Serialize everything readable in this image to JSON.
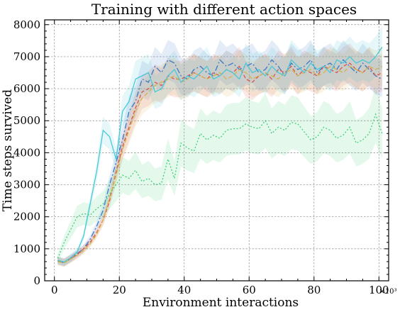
{
  "chart_data": {
    "type": "line",
    "title": "Training with different action spaces",
    "xlabel": "Environment interactions",
    "ylabel": "Time steps survived",
    "x_multiplier": "×10³",
    "xlim": [
      -3,
      103
    ],
    "ylim": [
      0,
      8150
    ],
    "xticks": [
      0,
      20,
      40,
      60,
      80,
      100
    ],
    "yticks": [
      0,
      1000,
      2000,
      3000,
      4000,
      5000,
      6000,
      7000,
      8000
    ],
    "grid": true,
    "x": [
      1,
      3,
      5,
      7,
      9,
      11,
      13,
      15,
      17,
      19,
      21,
      23,
      25,
      27,
      29,
      31,
      33,
      35,
      37,
      39,
      41,
      43,
      45,
      47,
      49,
      51,
      53,
      55,
      57,
      59,
      61,
      63,
      65,
      67,
      69,
      71,
      73,
      75,
      77,
      79,
      81,
      83,
      85,
      87,
      89,
      91,
      93,
      95,
      97,
      99,
      101
    ],
    "series": [
      {
        "color": "#3a78c9",
        "dash": "8,3,2,3",
        "band": [
          650,
          800,
          1100,
          1300,
          1600,
          2000,
          2600,
          3200,
          3700,
          4000,
          4500,
          5000,
          5400,
          5700,
          5900,
          6000,
          6100,
          6150,
          6200,
          6200,
          6250,
          6250,
          6250,
          6250,
          6300,
          6300,
          6300,
          6300,
          6300,
          6300,
          6300,
          6300,
          6300,
          6300,
          6300,
          6300,
          6300,
          6300,
          6300,
          6300,
          6300,
          6300,
          6300,
          6300,
          6300,
          6300,
          6300,
          6300,
          6300,
          6300,
          6300
        ],
        "values": [
          620,
          560,
          700,
          850,
          1000,
          1300,
          1700,
          2200,
          3000,
          3700,
          4400,
          5300,
          5600,
          6300,
          6200,
          6700,
          6500,
          6900,
          6800,
          6400,
          6300,
          6600,
          6700,
          6500,
          6400,
          6900,
          6700,
          6800,
          6600,
          6700,
          6800,
          6500,
          6600,
          6900,
          6700,
          6400,
          6800,
          6600,
          6700,
          6900,
          6500,
          6700,
          6800,
          6600,
          6900,
          6700,
          6500,
          6800,
          6600,
          6400,
          6300
        ]
      },
      {
        "color": "#d9534f",
        "dash": "5,3",
        "band": [
          650,
          800,
          1100,
          1300,
          1600,
          2000,
          2600,
          3200,
          3700,
          4000,
          4500,
          5000,
          5400,
          5700,
          5900,
          6000,
          6100,
          6150,
          6200,
          6200,
          6250,
          6250,
          6250,
          6250,
          6300,
          6300,
          6300,
          6300,
          6300,
          6300,
          6300,
          6300,
          6300,
          6300,
          6300,
          6300,
          6300,
          6300,
          6300,
          6300,
          6300,
          6300,
          6300,
          6300,
          6300,
          6300,
          6300,
          6300,
          6300,
          6300,
          6300
        ],
        "values": [
          640,
          580,
          690,
          820,
          1000,
          1200,
          1500,
          1900,
          2500,
          3400,
          4200,
          4800,
          5400,
          5900,
          6000,
          6200,
          6100,
          6400,
          6300,
          6300,
          6400,
          6500,
          6400,
          6300,
          6500,
          6400,
          6600,
          6500,
          6700,
          6300,
          6200,
          6400,
          6500,
          6300,
          6600,
          6500,
          6700,
          6400,
          6600,
          6500,
          6400,
          6700,
          6600,
          6500,
          6700,
          6800,
          6600,
          6500,
          6700,
          6400,
          6500
        ]
      },
      {
        "color": "#d1b34c",
        "dash": "6,3",
        "band": [
          650,
          800,
          1100,
          1300,
          1600,
          2000,
          2600,
          3200,
          3700,
          4000,
          4500,
          5000,
          5400,
          5700,
          5900,
          6000,
          6100,
          6150,
          6200,
          6200,
          6250,
          6250,
          6250,
          6250,
          6300,
          6300,
          6300,
          6300,
          6300,
          6300,
          6300,
          6300,
          6300,
          6300,
          6300,
          6300,
          6300,
          6300,
          6300,
          6300,
          6300,
          6300,
          6300,
          6300,
          6300,
          6300,
          6300,
          6300,
          6300,
          6300,
          6300
        ],
        "values": [
          600,
          560,
          680,
          800,
          950,
          1150,
          1450,
          1900,
          2600,
          3300,
          4100,
          4700,
          5300,
          5700,
          5900,
          6100,
          6200,
          6300,
          6400,
          6200,
          6300,
          6500,
          6400,
          6300,
          6400,
          6500,
          6300,
          6400,
          6600,
          6500,
          6300,
          6400,
          6500,
          6400,
          6300,
          6500,
          6600,
          6400,
          6500,
          6600,
          6400,
          6500,
          6700,
          6600,
          6500,
          6700,
          6600,
          6500,
          6700,
          6600,
          6700
        ]
      },
      {
        "color": "#49c8d8",
        "dash": "",
        "band": [
          650,
          800,
          1100,
          1300,
          1600,
          2000,
          2600,
          3200,
          3700,
          4000,
          4500,
          5000,
          5400,
          5700,
          5900,
          6000,
          6100,
          6150,
          6200,
          6200,
          6250,
          6250,
          6250,
          6250,
          6300,
          6300,
          6300,
          6300,
          6300,
          6300,
          6300,
          6300,
          6300,
          6300,
          6300,
          6300,
          6300,
          6300,
          6300,
          6300,
          6300,
          6300,
          6300,
          6300,
          6300,
          6300,
          6300,
          6300,
          6300,
          6300,
          6300
        ],
        "values": [
          640,
          590,
          720,
          900,
          1400,
          2400,
          3400,
          4700,
          4500,
          3800,
          5300,
          5600,
          6300,
          6400,
          6500,
          5900,
          6000,
          6400,
          6600,
          6200,
          6400,
          6300,
          6500,
          6700,
          6300,
          6400,
          6600,
          6500,
          6300,
          6800,
          6500,
          6600,
          6400,
          6700,
          6500,
          6400,
          6900,
          6700,
          6500,
          6800,
          6600,
          6700,
          6500,
          6900,
          6800,
          7000,
          6800,
          6900,
          6800,
          7000,
          7300
        ]
      },
      {
        "color": "#3fd17a",
        "dash": "2,2.5",
        "band": [
          650,
          800,
          1100,
          1300,
          1600,
          2000,
          2600,
          3200,
          3700,
          4000,
          4500,
          5000,
          5400,
          5700,
          5900,
          6000,
          6100,
          6150,
          6200,
          6200,
          6250,
          6250,
          6250,
          6250,
          6300,
          6300,
          6300,
          6300,
          6300,
          6300,
          6300,
          6300,
          6300,
          6300,
          6300,
          6300,
          6300,
          6300,
          6300,
          6300,
          6300,
          6300,
          6300,
          6300,
          6300,
          6300,
          6300,
          6300,
          6300,
          6300,
          6300
        ],
        "values": [
          700,
          1200,
          1600,
          2000,
          2100,
          2050,
          2250,
          2400,
          2700,
          3000,
          3300,
          3200,
          3450,
          3100,
          3200,
          3000,
          3050,
          3800,
          3200,
          4300,
          4150,
          4050,
          4600,
          4400,
          4550,
          4450,
          4700,
          4750,
          4750,
          4900,
          4800,
          4750,
          5000,
          4600,
          4800,
          4700,
          4950,
          4900,
          4650,
          4400,
          4500,
          4800,
          4700,
          4450,
          4550,
          4800,
          4300,
          4400,
          4600,
          5200,
          4600
        ]
      }
    ]
  }
}
